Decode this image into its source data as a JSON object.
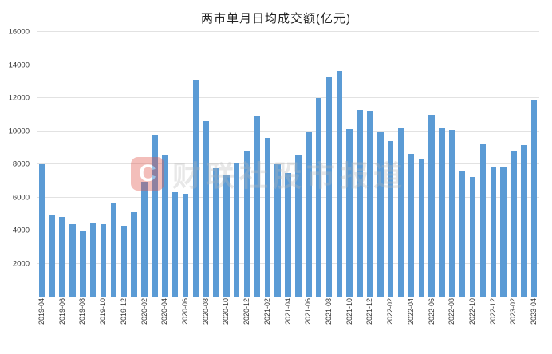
{
  "page": {
    "background": "#ffffff"
  },
  "watermark": {
    "logo_letter": "C",
    "logo_color": "#e2574c",
    "logo_text_color": "#ffffff",
    "text": "财联社股市报道",
    "text_color": "#b9b9b9"
  },
  "chart_data": {
    "type": "bar",
    "title": "两市单月日均成交额(亿元)",
    "xlabel": "",
    "ylabel": "",
    "ylim": [
      0,
      16000
    ],
    "y_tick_step": 2000,
    "x_tick_every": 2,
    "grid": true,
    "legend": "none",
    "bar_color": "#5B9BD5",
    "gridline_color": "#e2e2e2",
    "axis_color": "#9a9a9a",
    "categories": [
      "2019-04",
      "2019-05",
      "2019-06",
      "2019-07",
      "2019-08",
      "2019-09",
      "2019-10",
      "2019-11",
      "2019-12",
      "2020-01",
      "2020-02",
      "2020-03",
      "2020-04",
      "2020-05",
      "2020-06",
      "2020-07",
      "2020-08",
      "2020-09",
      "2020-10",
      "2020-11",
      "2020-12",
      "2021-01",
      "2021-02",
      "2021-03",
      "2021-04",
      "2021-05",
      "2021-06",
      "2021-07",
      "2021-08",
      "2021-09",
      "2021-10",
      "2021-11",
      "2021-12",
      "2022-01",
      "2022-02",
      "2022-03",
      "2022-04",
      "2022-05",
      "2022-06",
      "2022-07",
      "2022-08",
      "2022-09",
      "2022-10",
      "2022-11",
      "2022-12",
      "2023-01",
      "2023-02",
      "2023-03",
      "2023-04"
    ],
    "values": [
      8000,
      4900,
      4800,
      4400,
      3950,
      4450,
      4400,
      5650,
      4250,
      5100,
      6950,
      9800,
      8550,
      6300,
      6200,
      13100,
      10600,
      7750,
      7350,
      8100,
      8800,
      10900,
      9600,
      8000,
      7450,
      8600,
      9950,
      12000,
      13300,
      13650,
      10100,
      11300,
      11250,
      10000,
      9400,
      10150,
      8650,
      8350,
      11000,
      10200,
      10050,
      7600,
      7250,
      9250,
      7850,
      7800,
      8800,
      9150,
      11900
    ]
  }
}
